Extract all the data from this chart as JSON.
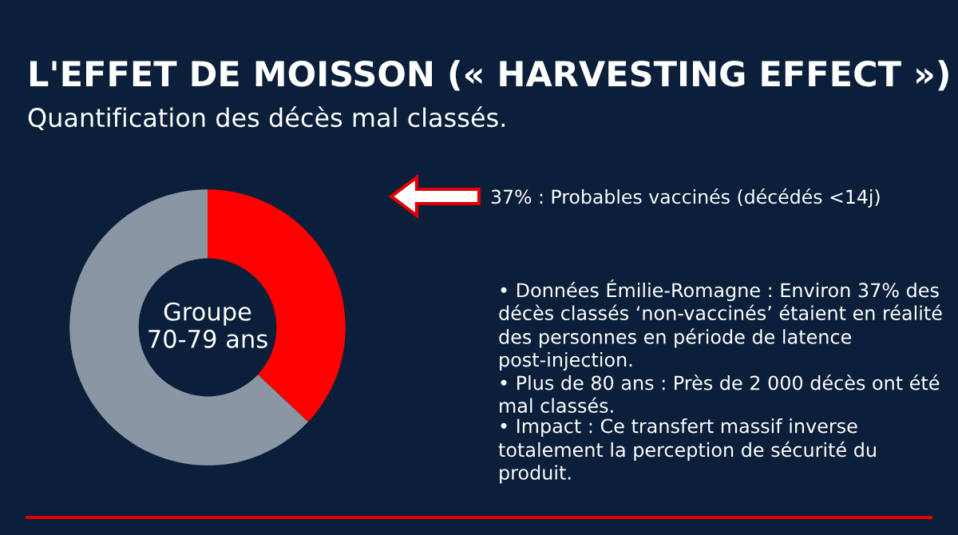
{
  "chart_data": {
    "type": "donut",
    "title": "L'EFFET DE MOISSON (« HARVESTING EFFECT »)",
    "subtitle": "Quantification des décès mal classés.",
    "categories": [
      null,
      null
    ],
    "values": [
      37,
      63
    ],
    "colors": [
      "#ff0000",
      "#8a96a4"
    ],
    "annotations": [
      "Groupe\n70-79 ans",
      "37% : Probables vaccinés (décédés <14j)",
      "• Données Émilie-Romagne : Environ 37% des décès classés ‘non-vaccinés’ étaient en réalité des personnes en période de latence post-injection.",
      "• Plus de 80 ans : Près de 2 000 décès ont été mal classés.",
      "• Impact : Ce transfert massif inverse totalement la perception de sécurité du produit."
    ]
  }
}
